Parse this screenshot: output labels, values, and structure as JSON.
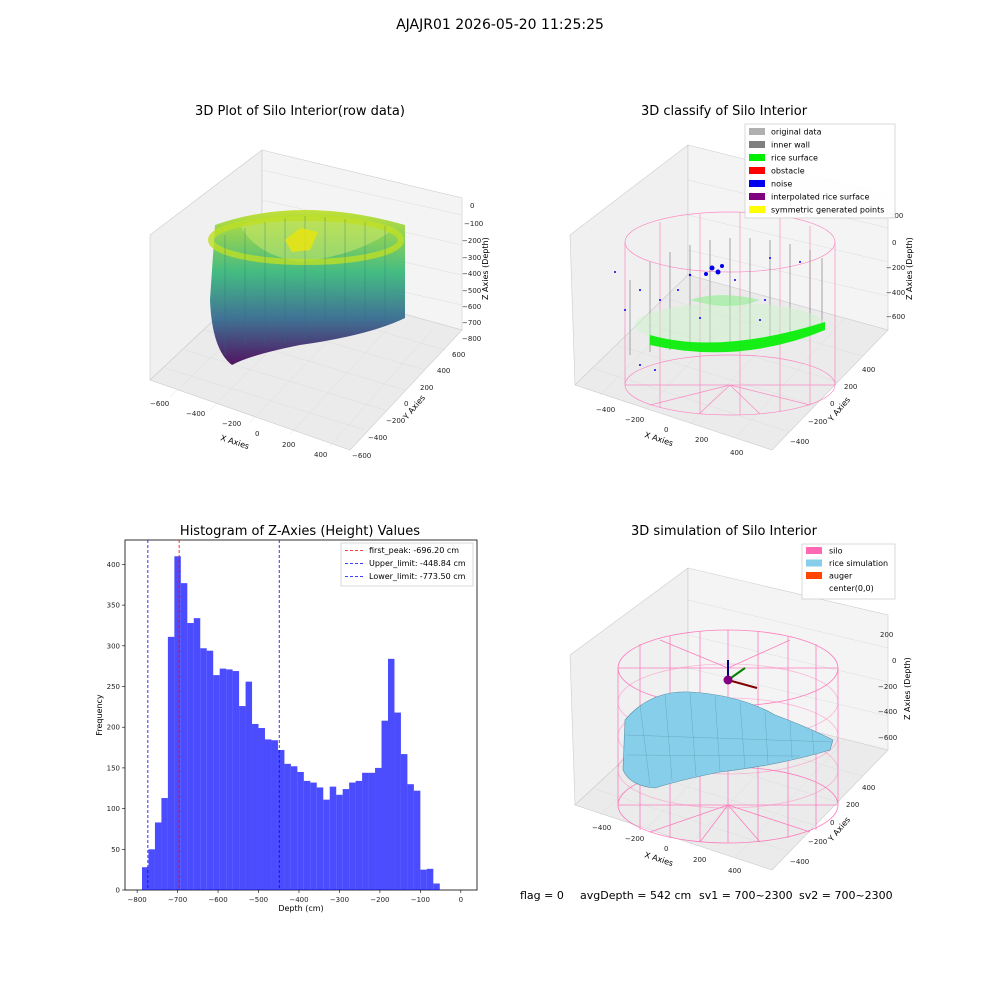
{
  "suptitle": "AJAJR01 2026-05-20 11:25:25",
  "panels": {
    "raw": {
      "title": "3D Plot of Silo Interior(row data)",
      "xlabel": "X Axies",
      "ylabel": "Y Axies",
      "zlabel": "Z Axies (Depth)",
      "xticks": [
        "−600",
        "−400",
        "−200",
        "0",
        "200",
        "400"
      ],
      "yticks": [
        "600",
        "400",
        "200",
        "0",
        "−200",
        "−400",
        "−600"
      ],
      "zticks": [
        "0",
        "−100",
        "−200",
        "−300",
        "−400",
        "−500",
        "−600",
        "−700",
        "−800"
      ]
    },
    "classify": {
      "title": "3D classify of Silo Interior",
      "xlabel": "X Axies",
      "ylabel": "Y Axies",
      "zlabel": "Z Axies (Depth)",
      "xticks": [
        "−400",
        "−200",
        "0",
        "200",
        "400"
      ],
      "yticks": [
        "400",
        "200",
        "0",
        "−200",
        "−400"
      ],
      "zticks": [
        "200",
        "0",
        "−200",
        "−400",
        "−600"
      ],
      "legend": [
        {
          "label": "original data",
          "color": "#b0b0b0"
        },
        {
          "label": "inner wall",
          "color": "#808080"
        },
        {
          "label": "rice surface",
          "color": "#00ee00"
        },
        {
          "label": "obstacle",
          "color": "#ff0000"
        },
        {
          "label": "noise",
          "color": "#0000ee"
        },
        {
          "label": "interpolated rice surface",
          "color": "#800080"
        },
        {
          "label": "symmetric generated points",
          "color": "#ffff00"
        }
      ]
    },
    "simulation": {
      "title": "3D simulation of Silo Interior",
      "xlabel": "X Axies",
      "ylabel": "Y Axies",
      "zlabel": "Z Axies (Depth)",
      "xticks": [
        "−400",
        "−200",
        "0",
        "200",
        "400"
      ],
      "yticks": [
        "400",
        "200",
        "0",
        "−200",
        "−400"
      ],
      "zticks": [
        "200",
        "0",
        "−200",
        "−400",
        "−600"
      ],
      "legend": [
        {
          "label": "silo",
          "color": "#ff69b4"
        },
        {
          "label": "rice simulation",
          "color": "#87ceeb"
        },
        {
          "label": "auger",
          "color": "#ff4500"
        },
        {
          "label": "center(0,0)",
          "color": ""
        }
      ]
    }
  },
  "status": {
    "flag": "flag = 0",
    "avg": "avgDepth = 542 cm",
    "sv1": "sv1 = 700~2300",
    "sv2": "sv2 = 700~2300"
  },
  "chart_data": {
    "type": "bar",
    "title": "Histogram of Z-Axies (Height) Values",
    "xlabel": "Depth (cm)",
    "ylabel": "Frequency",
    "xlim": [
      -830,
      40
    ],
    "ylim": [
      0,
      430
    ],
    "xticks": [
      -800,
      -700,
      -600,
      -500,
      -400,
      -300,
      -200,
      -100,
      0
    ],
    "xtick_labels": [
      "−800",
      "−700",
      "−600",
      "−500",
      "−400",
      "−300",
      "−200",
      "−100",
      "0"
    ],
    "yticks": [
      0,
      50,
      100,
      150,
      200,
      250,
      300,
      350,
      400
    ],
    "bin_start": -788,
    "bin_width": 16,
    "values": [
      28,
      50,
      83,
      113,
      311,
      410,
      377,
      328,
      334,
      297,
      294,
      264,
      272,
      271,
      269,
      226,
      256,
      204,
      199,
      185,
      184,
      172,
      155,
      152,
      145,
      134,
      132,
      126,
      111,
      127,
      117,
      124,
      132,
      134,
      144,
      144,
      150,
      208,
      284,
      218,
      167,
      130,
      122,
      25,
      26,
      8
    ],
    "bar_color": "#0000ff",
    "lines": [
      {
        "x": -696.2,
        "color": "#ff0000",
        "label": "first_peak: -696.20 cm"
      },
      {
        "x": -448.84,
        "color": "#0000ff",
        "label": "Upper_limit: -448.84 cm"
      },
      {
        "x": -773.5,
        "color": "#0000ff",
        "label": "Lower_limit: -773.50 cm"
      }
    ]
  }
}
